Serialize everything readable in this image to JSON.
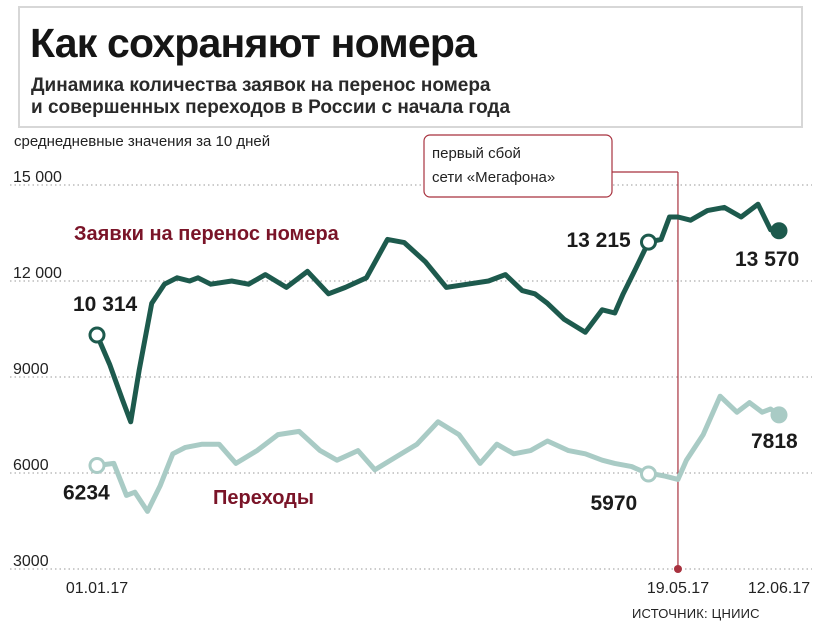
{
  "header": {
    "title": "Как сохраняют номера",
    "subtitle_line1": "Динамика количества заявок на перенос номера",
    "subtitle_line2": "и совершенных переходов в России с начала года"
  },
  "unit_note": "среднедневные значения за 10 дней",
  "source": "ИСТОЧНИК: ЦНИИС",
  "event": {
    "line1": "первый сбой",
    "line2": "сети «Мегафона»",
    "date": "2017-05-19"
  },
  "colors": {
    "applications": "#1d5a4d",
    "transfers": "#a9cbc5",
    "series_name": "#7a1428",
    "event_marker": "#a8323f",
    "grid": "#9a9a9a"
  },
  "chart_data": {
    "type": "line",
    "title": "Как сохраняют номера",
    "x_range": [
      "2017-01-01",
      "2017-06-12"
    ],
    "ylim": [
      3000,
      15000
    ],
    "y_ticks": [
      3000,
      6000,
      9000,
      12000,
      15000
    ],
    "y_tick_labels": [
      "3000",
      "6000",
      "9000",
      "12 000",
      "15 000"
    ],
    "x_tick_labels": [
      {
        "date": "2017-01-01",
        "label": "01.01.17"
      },
      {
        "date": "2017-05-19",
        "label": "19.05.17"
      },
      {
        "date": "2017-06-12",
        "label": "12.06.17"
      }
    ],
    "grid": true,
    "series": [
      {
        "key": "applications",
        "name": "Заявки на перенос номера",
        "x": [
          "2017-01-01",
          "2017-01-04",
          "2017-01-07",
          "2017-01-09",
          "2017-01-11",
          "2017-01-14",
          "2017-01-17",
          "2017-01-20",
          "2017-01-23",
          "2017-01-25",
          "2017-01-28",
          "2017-02-02",
          "2017-02-06",
          "2017-02-10",
          "2017-02-15",
          "2017-02-20",
          "2017-02-25",
          "2017-03-01",
          "2017-03-06",
          "2017-03-11",
          "2017-03-15",
          "2017-03-20",
          "2017-03-25",
          "2017-03-30",
          "2017-04-04",
          "2017-04-08",
          "2017-04-12",
          "2017-04-15",
          "2017-04-18",
          "2017-04-22",
          "2017-04-27",
          "2017-05-01",
          "2017-05-04",
          "2017-05-06",
          "2017-05-09",
          "2017-05-12",
          "2017-05-15",
          "2017-05-17",
          "2017-05-19",
          "2017-05-22",
          "2017-05-26",
          "2017-05-30",
          "2017-06-03",
          "2017-06-07",
          "2017-06-10",
          "2017-06-12"
        ],
        "values": [
          10314,
          9400,
          8300,
          7600,
          9200,
          11300,
          11900,
          12100,
          12000,
          12100,
          11900,
          12000,
          11900,
          12200,
          11800,
          12300,
          11600,
          11800,
          12100,
          13300,
          13200,
          12600,
          11800,
          11900,
          12000,
          12200,
          11700,
          11600,
          11300,
          10800,
          10400,
          11100,
          11000,
          11600,
          12400,
          13215,
          13300,
          14000,
          14000,
          13900,
          14200,
          14300,
          14000,
          14400,
          13600,
          13570
        ]
      },
      {
        "key": "transfers",
        "name": "Переходы",
        "x": [
          "2017-01-01",
          "2017-01-05",
          "2017-01-08",
          "2017-01-10",
          "2017-01-13",
          "2017-01-16",
          "2017-01-19",
          "2017-01-22",
          "2017-01-26",
          "2017-01-30",
          "2017-02-03",
          "2017-02-08",
          "2017-02-13",
          "2017-02-18",
          "2017-02-23",
          "2017-02-27",
          "2017-03-04",
          "2017-03-08",
          "2017-03-13",
          "2017-03-18",
          "2017-03-23",
          "2017-03-28",
          "2017-04-02",
          "2017-04-06",
          "2017-04-10",
          "2017-04-14",
          "2017-04-18",
          "2017-04-23",
          "2017-04-27",
          "2017-05-01",
          "2017-05-04",
          "2017-05-08",
          "2017-05-12",
          "2017-05-14",
          "2017-05-16",
          "2017-05-19",
          "2017-05-21",
          "2017-05-25",
          "2017-05-29",
          "2017-06-02",
          "2017-06-05",
          "2017-06-08",
          "2017-06-10",
          "2017-06-12"
        ],
        "values": [
          6234,
          6300,
          5300,
          5400,
          4800,
          5600,
          6600,
          6800,
          6900,
          6900,
          6300,
          6700,
          7200,
          7300,
          6700,
          6400,
          6700,
          6100,
          6500,
          6900,
          7600,
          7200,
          6300,
          6900,
          6600,
          6700,
          7000,
          6700,
          6600,
          6400,
          6300,
          6200,
          5970,
          5950,
          5900,
          5800,
          6400,
          7200,
          8400,
          7900,
          8200,
          7900,
          8000,
          7818
        ]
      }
    ],
    "point_labels": [
      {
        "series": "applications",
        "date": "2017-01-01",
        "text": "10 314"
      },
      {
        "series": "applications",
        "date": "2017-05-12",
        "text": "13 215"
      },
      {
        "series": "applications",
        "date": "2017-06-12",
        "text": "13 570"
      },
      {
        "series": "transfers",
        "date": "2017-01-01",
        "text": "6234"
      },
      {
        "series": "transfers",
        "date": "2017-05-12",
        "text": "5970"
      },
      {
        "series": "transfers",
        "date": "2017-06-12",
        "text": "7818"
      }
    ]
  }
}
